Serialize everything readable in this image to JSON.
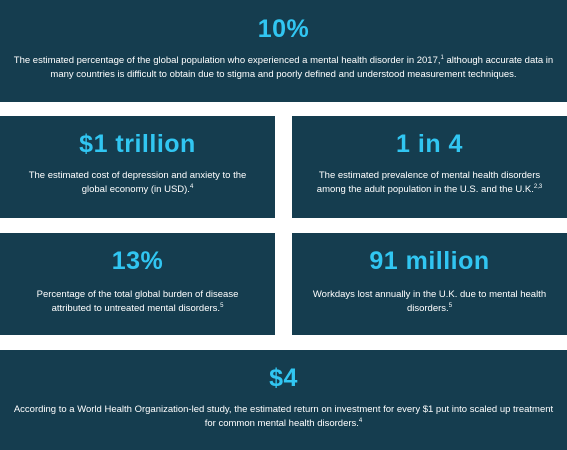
{
  "cards": {
    "top": {
      "stat": "10%",
      "text": "The estimated percentage of the global population who experienced a mental health disorder in 2017,",
      "sup": "1",
      "text_after": " although accurate data in many countries is difficult to obtain due to stigma and poorly defined and understood measurement techniques."
    },
    "mid_left": {
      "stat": "$1 trillion",
      "text": "The estimated cost of depression and anxiety to the global economy (in USD).",
      "sup": "4"
    },
    "mid_right": {
      "stat": "1 in 4",
      "text": "The estimated prevalence of mental health disorders among the adult population in the U.S. and the U.K.",
      "sup": "2,3"
    },
    "low_left": {
      "stat": "13%",
      "text": "Percentage of the total global burden of disease attributed to untreated mental disorders.",
      "sup": "5"
    },
    "low_right": {
      "stat": "91 million",
      "text": "Workdays lost annually in the U.K. due to mental health disorders.",
      "sup": "5"
    },
    "bottom": {
      "stat": "$4",
      "text": "According to a World Health Organization-led study, the estimated return on investment for every $1 put into scaled up treatment for common mental health disorders.",
      "sup": "4"
    }
  },
  "colors": {
    "card_background": "#153d4f",
    "stat_color": "#31c6f2",
    "text_color": "#ffffff"
  }
}
